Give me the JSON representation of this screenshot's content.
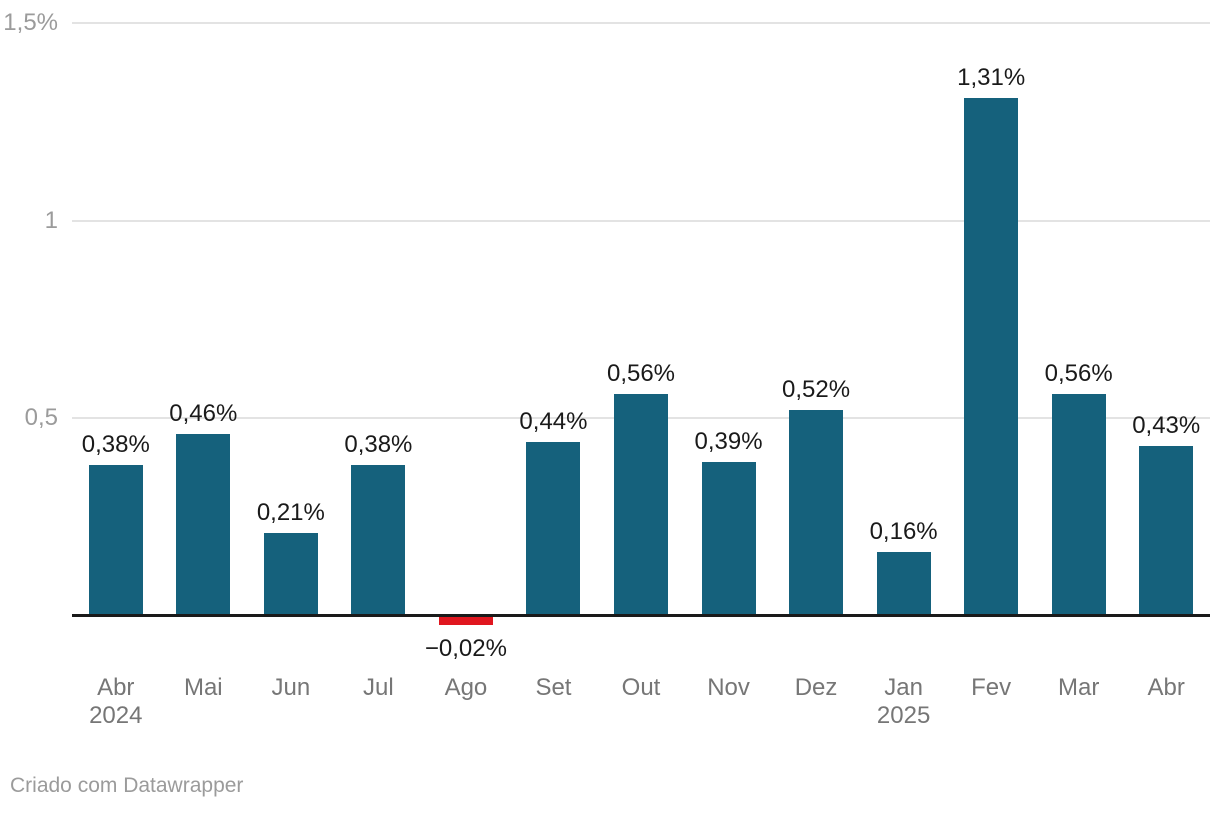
{
  "chart_data": {
    "type": "bar",
    "categories": [
      "Abr",
      "Mai",
      "Jun",
      "Jul",
      "Ago",
      "Set",
      "Out",
      "Nov",
      "Dez",
      "Jan",
      "Fev",
      "Mar",
      "Abr"
    ],
    "category_sublabels": [
      "2024",
      "",
      "",
      "",
      "",
      "",
      "",
      "",
      "",
      "2025",
      "",
      "",
      ""
    ],
    "values": [
      0.38,
      0.46,
      0.21,
      0.38,
      -0.02,
      0.44,
      0.56,
      0.39,
      0.52,
      0.16,
      1.31,
      0.56,
      0.43
    ],
    "value_labels": [
      "0,38%",
      "0,46%",
      "0,21%",
      "0,38%",
      "−0,02%",
      "0,44%",
      "0,56%",
      "0,39%",
      "0,52%",
      "0,16%",
      "1,31%",
      "0,56%",
      "0,43%"
    ],
    "y_ticks": [
      {
        "value": 0.5,
        "label": "0,5"
      },
      {
        "value": 1.0,
        "label": "1"
      },
      {
        "value": 1.5,
        "label": "1,5%"
      }
    ],
    "ylim": [
      -0.05,
      1.5
    ],
    "xlabel": "",
    "ylabel": "",
    "grid": "horizontal",
    "legend": "none",
    "title": "",
    "colors": {
      "bar_positive": "#15617c",
      "bar_negative": "#e0161f",
      "gridline": "#e3e3e3",
      "baseline": "#1a1a1a",
      "value_label": "#1a1a1a",
      "x_axis_label": "#767676",
      "y_axis_label": "#9b9b9b",
      "footer_text": "#9b9b9b"
    }
  },
  "footer": {
    "credit": "Criado com Datawrapper"
  }
}
